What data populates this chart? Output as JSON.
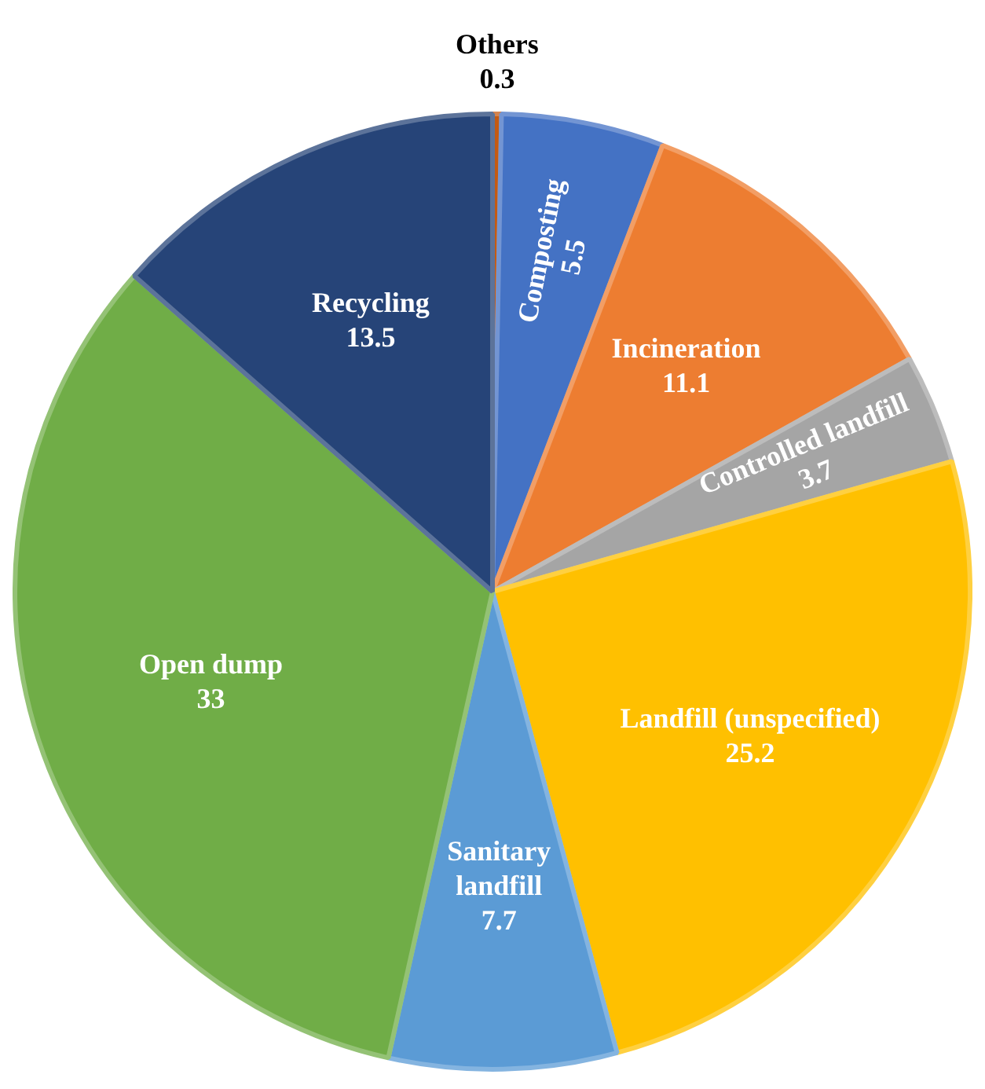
{
  "chart_data": {
    "type": "pie",
    "categories": [
      "Others",
      "Composting",
      "Incineration",
      "Controlled landfill",
      "Landfill (unspecified)",
      "Sanitary landfill",
      "Open dump",
      "Recycling"
    ],
    "values": [
      0.3,
      5.5,
      11.1,
      3.7,
      25.2,
      7.7,
      33,
      13.5
    ],
    "colors": [
      "#c55a11",
      "#4472c4",
      "#ed7d31",
      "#a5a5a5",
      "#ffc000",
      "#5b9bd5",
      "#70ad47",
      "#264478"
    ],
    "data_labels": true,
    "legend": false
  }
}
